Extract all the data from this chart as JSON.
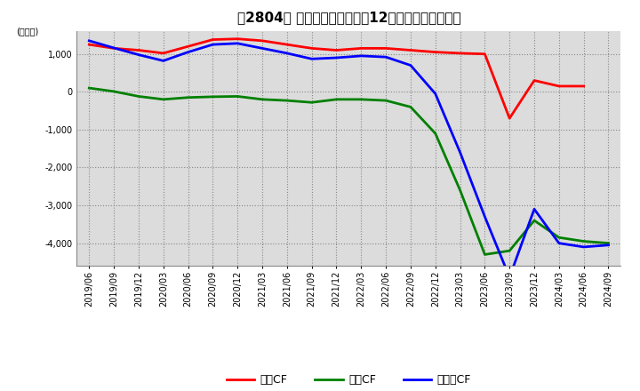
{
  "title": "　2804、 キャッシュフローの12か月移動合計の推移",
  "title_bracket": "　2804、",
  "title_main": "キャッシュフローの12か月移動合計の推移",
  "ylabel": "(百万円)",
  "ylim": [
    -4600,
    1600
  ],
  "yticks": [
    1000,
    0,
    -1000,
    -2000,
    -3000,
    -4000
  ],
  "background_color": "#ffffff",
  "plot_bg_color": "#dcdcdc",
  "dates": [
    "2019/06",
    "2019/09",
    "2019/12",
    "2020/03",
    "2020/06",
    "2020/09",
    "2020/12",
    "2021/03",
    "2021/06",
    "2021/09",
    "2021/12",
    "2022/03",
    "2022/06",
    "2022/09",
    "2022/12",
    "2023/03",
    "2023/06",
    "2023/09",
    "2023/12",
    "2024/03",
    "2024/06",
    "2024/09"
  ],
  "eigyo_cf": [
    1250,
    1150,
    1100,
    1020,
    1200,
    1380,
    1400,
    1350,
    1250,
    1150,
    1100,
    1150,
    1150,
    1100,
    1050,
    1020,
    1000,
    -700,
    300,
    150,
    150,
    null
  ],
  "toshi_cf": [
    100,
    10,
    -120,
    -200,
    -150,
    -130,
    -120,
    -200,
    -230,
    -280,
    -200,
    -200,
    -230,
    -400,
    -1100,
    -2600,
    -4300,
    -4200,
    -3400,
    -3850,
    -3950,
    -4000
  ],
  "free_cf": [
    1350,
    1160,
    980,
    820,
    1050,
    1250,
    1280,
    1150,
    1020,
    870,
    900,
    950,
    920,
    700,
    -50,
    -1600,
    -3300,
    -4900,
    -3100,
    -4000,
    -4100,
    -4050
  ],
  "eigyo_color": "#ff0000",
  "toshi_color": "#008000",
  "free_color": "#0000ff",
  "legend_labels": [
    "営業CF",
    "投資CF",
    "フリーCF"
  ],
  "title_fontsize": 11,
  "axis_fontsize": 7,
  "legend_fontsize": 9
}
